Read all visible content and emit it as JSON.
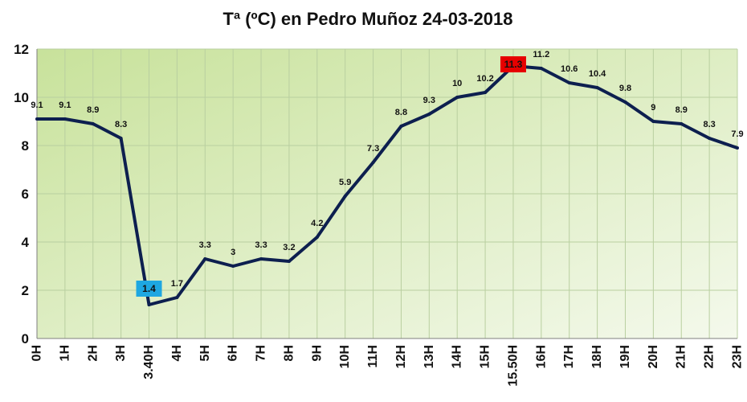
{
  "chart_data": {
    "type": "line",
    "title": "Tª (ºC) en Pedro Muñoz 24-03-2018",
    "xlabel": "",
    "ylabel": "",
    "ylim": [
      0,
      12
    ],
    "yticks": [
      "0",
      "2",
      "4",
      "6",
      "8",
      "10",
      "12"
    ],
    "grid": true,
    "legend": "none",
    "categories": [
      "0H",
      "1H",
      "2H",
      "3H",
      "3.40H",
      "4H",
      "5H",
      "6H",
      "7H",
      "8H",
      "9H",
      "10H",
      "11H",
      "12H",
      "13H",
      "14H",
      "15H",
      "15.50H",
      "16H",
      "17H",
      "18H",
      "19H",
      "20H",
      "21H",
      "22H",
      "23H"
    ],
    "values": [
      9.1,
      9.1,
      8.9,
      8.3,
      1.4,
      1.7,
      3.3,
      3.0,
      3.3,
      3.2,
      4.2,
      5.9,
      7.3,
      8.8,
      9.3,
      10.0,
      10.2,
      11.3,
      11.2,
      10.6,
      10.4,
      9.8,
      9.0,
      8.9,
      8.3,
      7.9
    ],
    "data_labels": [
      "9.1",
      "9.1",
      "8.9",
      "8.3",
      "1.4",
      "1.7",
      "3.3",
      "3",
      "3.3",
      "3.2",
      "4.2",
      "5.9",
      "7.3",
      "8.8",
      "9.3",
      "10",
      "10.2",
      "11.3",
      "11.2",
      "10.6",
      "10.4",
      "9.8",
      "9",
      "8.9",
      "8.3",
      "7.9"
    ],
    "min_index": 4,
    "max_index": 17,
    "colors": {
      "line": "#0d1f4f",
      "min_highlight": "#1ea7e1",
      "max_highlight": "#e60000",
      "grid": "#b9cfa0",
      "plot_bg_top_left": "#c8e29b",
      "plot_bg_bottom_right": "#f4f9ec"
    }
  }
}
